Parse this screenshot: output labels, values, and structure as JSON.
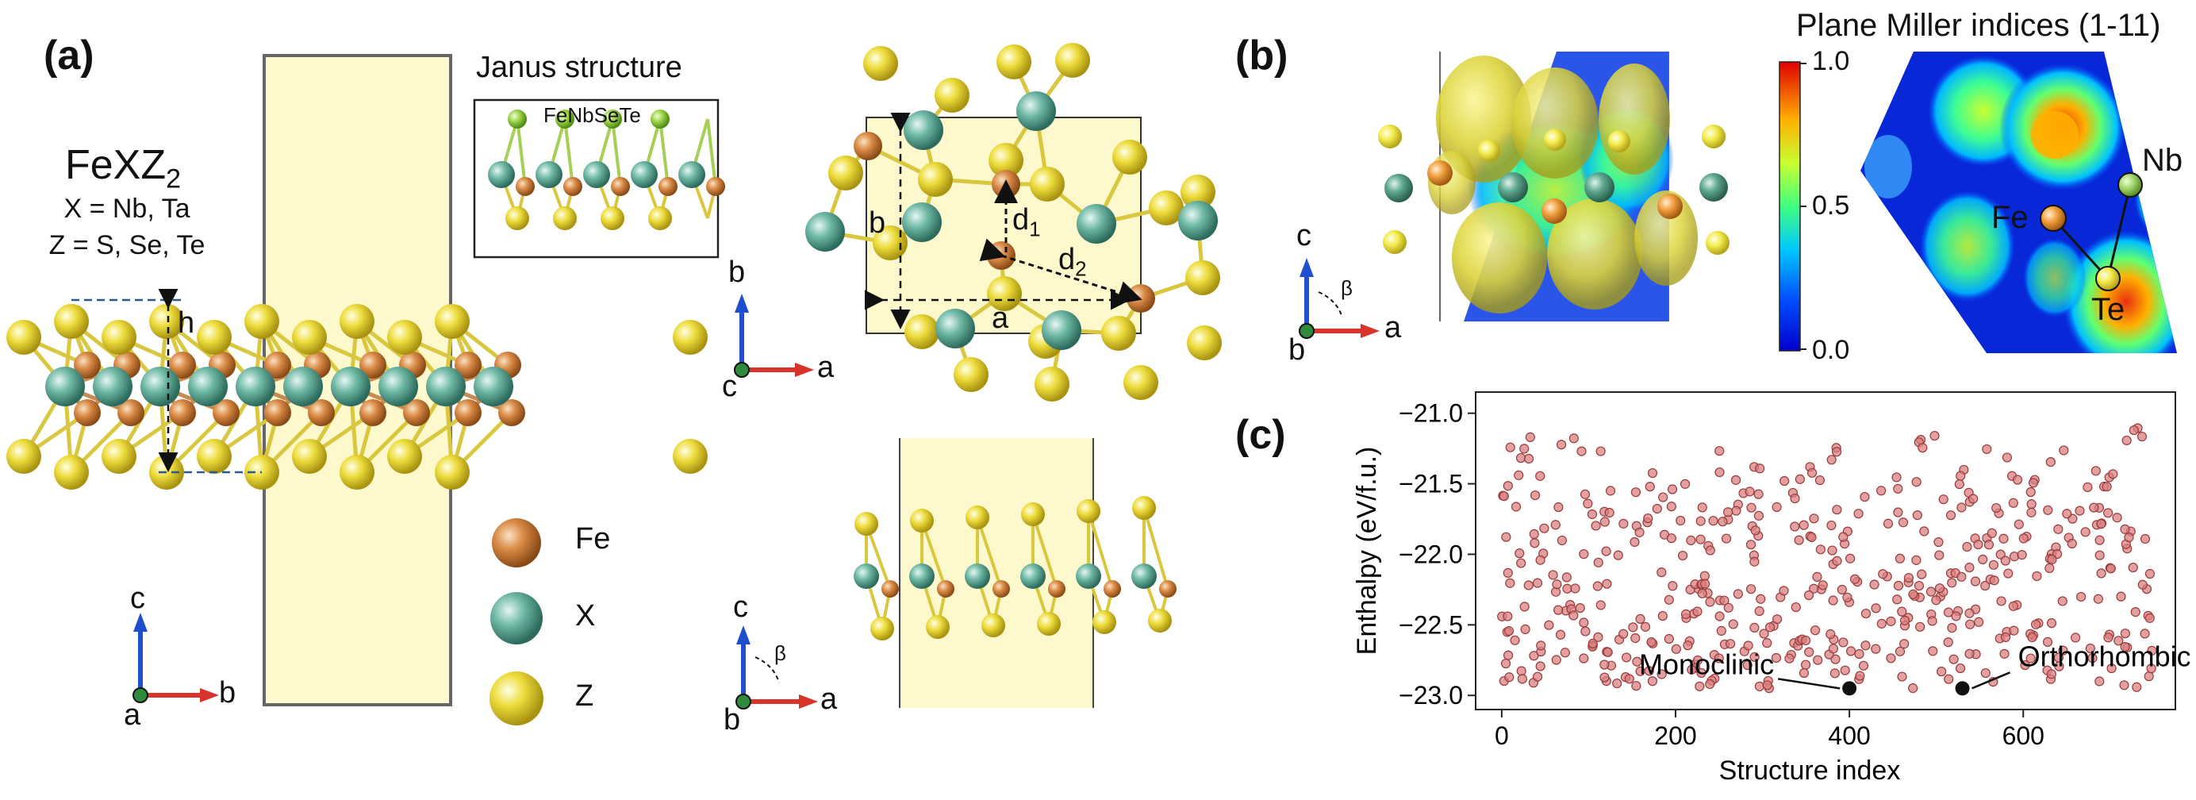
{
  "panels": {
    "a": {
      "label": "(a)",
      "formula_main": "FeXZ",
      "formula_sub": "2",
      "x_line": "X = Nb, Ta",
      "z_line": "Z = S, Se, Te",
      "h_label": "h",
      "janus_title": "Janus structure",
      "janus_compound": "FeNbSeTe",
      "legend": [
        {
          "label": "Fe",
          "color": "#d0813c"
        },
        {
          "label": "X",
          "color": "#6fbaa8"
        },
        {
          "label": "Z",
          "color": "#e8d840"
        }
      ],
      "top_view": {
        "a": "a",
        "b": "b",
        "d1": "d",
        "d1_sub": "1",
        "d2": "d",
        "d2_sub": "2"
      },
      "axes_side": {
        "vertical": "c",
        "horizontal": "b",
        "out": "a"
      },
      "axes_top": {
        "vertical": "b",
        "horizontal": "a",
        "out": "c"
      },
      "axes_front": {
        "vertical": "c",
        "horizontal": "a",
        "out": "b",
        "angle": "β"
      }
    },
    "b": {
      "label": "(b)",
      "plane_title": "Plane Miller indices (1-11)",
      "colorbar_ticks": [
        "1.0",
        "0.5",
        "0.0"
      ],
      "atom_labels": [
        "Fe",
        "Nb",
        "Te"
      ],
      "axes": {
        "vertical": "c",
        "horizontal": "a",
        "out": "b",
        "angle": "β"
      }
    },
    "c": {
      "label": "(c)"
    }
  },
  "chart_data": {
    "type": "scatter",
    "title": "",
    "xlabel": "Structure index",
    "ylabel": "Enthalpy (eV/f.u.)",
    "xlim": [
      -30,
      775
    ],
    "ylim": [
      -23.1,
      -20.85
    ],
    "xticks": [
      0,
      200,
      400,
      600
    ],
    "yticks": [
      -21.0,
      -21.5,
      -22.0,
      -22.5,
      -23.0
    ],
    "xtick_labels": [
      "0",
      "200",
      "400",
      "600"
    ],
    "ytick_labels": [
      "−21.0",
      "−21.5",
      "−22.0",
      "−22.5",
      "−23.0"
    ],
    "grid": false,
    "point_color": "#d98080",
    "n_points": 500,
    "highlights": [
      {
        "name": "Monoclinic",
        "x": 400,
        "y": -22.95
      },
      {
        "name": "Orthorhombic",
        "x": 530,
        "y": -22.95
      }
    ]
  }
}
